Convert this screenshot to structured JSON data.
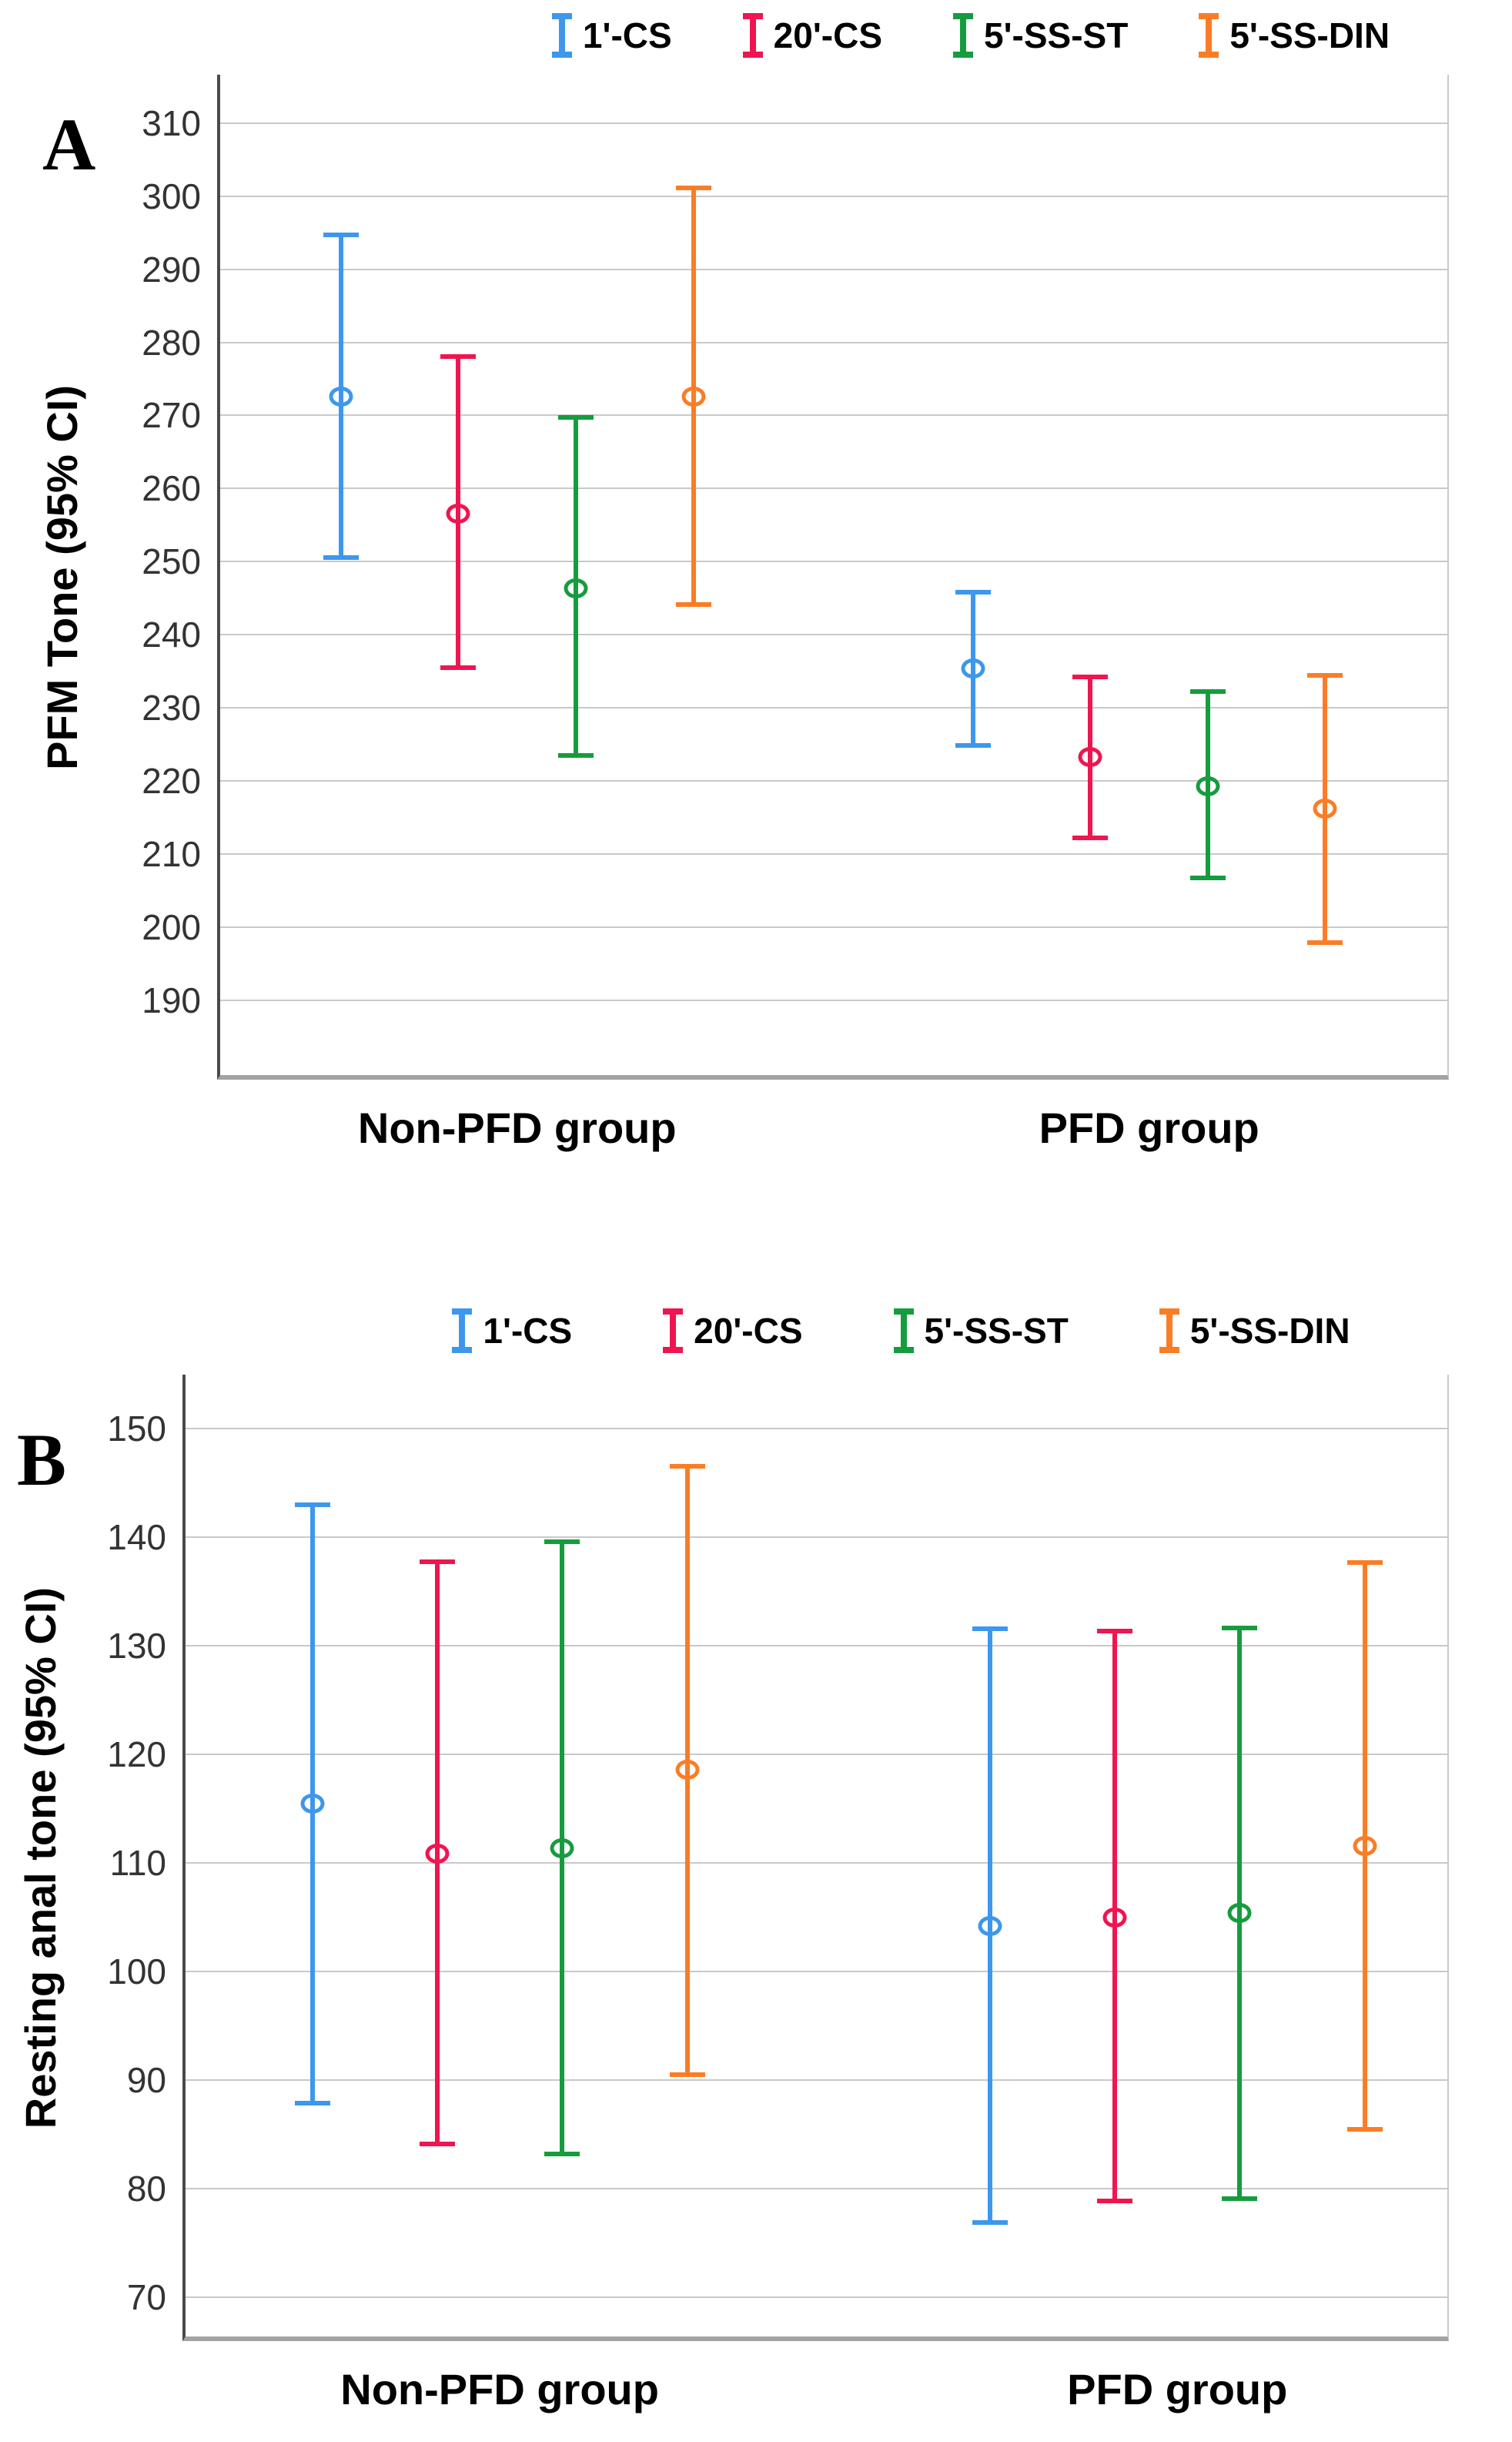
{
  "figure": {
    "background": "#ffffff",
    "gridline_color": "#c9c9c9",
    "axis_left_color": "#4a4a4a",
    "axis_bottom_color": "#a3a3a3"
  },
  "chart_data": [
    {
      "type": "errorbar",
      "panel_label": "A",
      "title": "",
      "xlabel": "",
      "ylabel": "PFM Tone (95% CI)",
      "categories": [
        "Non-PFD group",
        "PFD group"
      ],
      "yticks": [
        190,
        200,
        210,
        220,
        230,
        240,
        250,
        260,
        270,
        280,
        290,
        300,
        310
      ],
      "ylim": [
        179.8,
        316.6
      ],
      "grid": true,
      "legend_position": "top",
      "layout": {
        "group_centers_pct": [
          24.2,
          75.7
        ],
        "series_spacing_pct": 9.57
      },
      "series": [
        {
          "name": "1'-CS",
          "color": "#3d97ec",
          "points": [
            {
              "group": "Non-PFD group",
              "mean": 272.6,
              "ci_low": 250.3,
              "ci_high": 295.0
            },
            {
              "group": "PFD group",
              "mean": 235.4,
              "ci_low": 224.6,
              "ci_high": 246.1
            }
          ]
        },
        {
          "name": "20'-CS",
          "color": "#ee1550",
          "points": [
            {
              "group": "Non-PFD group",
              "mean": 256.6,
              "ci_low": 235.2,
              "ci_high": 278.4
            },
            {
              "group": "PFD group",
              "mean": 223.3,
              "ci_low": 211.9,
              "ci_high": 234.6
            }
          ]
        },
        {
          "name": "5'-SS-ST",
          "color": "#169c3e",
          "points": [
            {
              "group": "Non-PFD group",
              "mean": 246.4,
              "ci_low": 223.2,
              "ci_high": 270.0
            },
            {
              "group": "PFD group",
              "mean": 219.3,
              "ci_low": 206.4,
              "ci_high": 232.6
            }
          ]
        },
        {
          "name": "5'-SS-DIN",
          "color": "#fa7d26",
          "points": [
            {
              "group": "Non-PFD group",
              "mean": 272.6,
              "ci_low": 243.8,
              "ci_high": 301.4
            },
            {
              "group": "PFD group",
              "mean": 216.2,
              "ci_low": 197.6,
              "ci_high": 234.8
            }
          ]
        }
      ]
    },
    {
      "type": "errorbar",
      "panel_label": "B",
      "title": "",
      "xlabel": "",
      "ylabel": "Resting anal tone (95% CI)",
      "categories": [
        "Non-PFD group",
        "PFD group"
      ],
      "yticks": [
        70,
        80,
        90,
        100,
        110,
        120,
        130,
        140,
        150
      ],
      "ylim": [
        66.4,
        155.0
      ],
      "grid": true,
      "legend_position": "top",
      "layout": {
        "group_centers_pct": [
          24.9,
          78.6
        ],
        "series_spacing_pct": 9.9
      },
      "series": [
        {
          "name": "1'-CS",
          "color": "#3d97ec",
          "points": [
            {
              "group": "Non-PFD group",
              "mean": 115.5,
              "ci_low": 87.7,
              "ci_high": 143.2
            },
            {
              "group": "PFD group",
              "mean": 104.2,
              "ci_low": 76.7,
              "ci_high": 131.8
            }
          ]
        },
        {
          "name": "20'-CS",
          "color": "#ee1550",
          "points": [
            {
              "group": "Non-PFD group",
              "mean": 110.9,
              "ci_low": 83.9,
              "ci_high": 138.0
            },
            {
              "group": "PFD group",
              "mean": 105.0,
              "ci_low": 78.7,
              "ci_high": 131.6
            }
          ]
        },
        {
          "name": "5'-SS-ST",
          "color": "#169c3e",
          "points": [
            {
              "group": "Non-PFD group",
              "mean": 111.4,
              "ci_low": 83.0,
              "ci_high": 139.8
            },
            {
              "group": "PFD group",
              "mean": 105.4,
              "ci_low": 78.9,
              "ci_high": 131.9
            }
          ]
        },
        {
          "name": "5'-SS-DIN",
          "color": "#fa7d26",
          "points": [
            {
              "group": "Non-PFD group",
              "mean": 118.6,
              "ci_low": 90.3,
              "ci_high": 146.8
            },
            {
              "group": "PFD group",
              "mean": 111.6,
              "ci_low": 85.3,
              "ci_high": 137.9
            }
          ]
        }
      ]
    }
  ]
}
